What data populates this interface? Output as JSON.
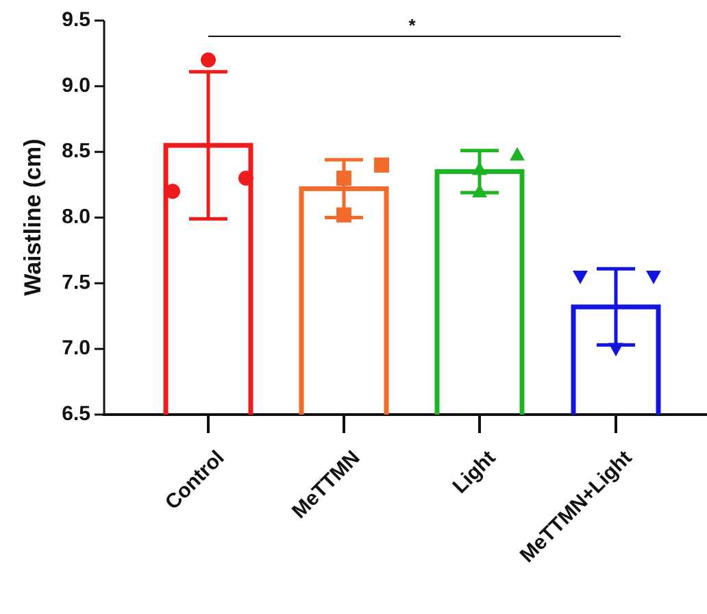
{
  "chart_data": {
    "type": "bar",
    "y_label": "Waistline (cm)",
    "categories": [
      "Control",
      "MeTTMN",
      "Light",
      "MeTTMN+Light"
    ],
    "values": [
      8.55,
      8.22,
      8.35,
      7.32
    ],
    "errors": [
      0.56,
      0.22,
      0.16,
      0.29
    ],
    "points": [
      [
        9.2,
        8.2,
        8.3
      ],
      [
        8.4,
        8.3,
        8.02
      ],
      [
        8.48,
        8.37,
        8.2
      ],
      [
        7.55,
        7.55,
        7.0
      ]
    ],
    "markers": [
      "circle",
      "square",
      "triangle-up",
      "triangle-down"
    ],
    "colors": [
      "#ee1c1c",
      "#f26b2a",
      "#1db424",
      "#1414e0"
    ],
    "significance": "*",
    "ylim": [
      6.5,
      9.5
    ],
    "yticks": [
      6.5,
      {
        "value": 7.0,
        "label": "7.0"
      },
      7.5,
      {
        "value": 8.0,
        "label": "8.0"
      },
      8.5,
      {
        "value": 9.0,
        "label": "9.0"
      },
      9.5
    ]
  }
}
